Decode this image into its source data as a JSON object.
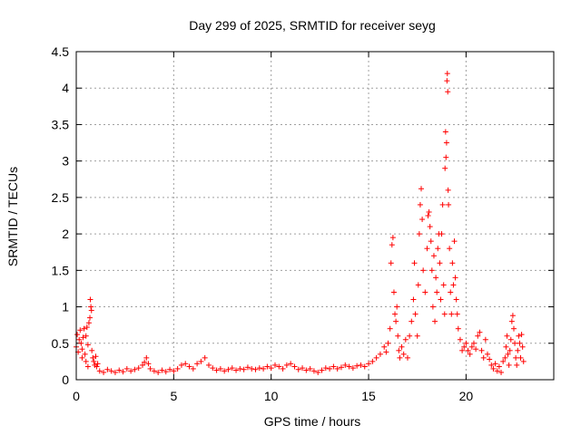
{
  "chart_data": {
    "type": "scatter",
    "title": "Day 299 of 2025, SRMTID for receiver seyg",
    "xlabel": "GPS time / hours",
    "ylabel": "SRMTID / TECUs",
    "xlim": [
      0,
      24.5
    ],
    "ylim": [
      0,
      4.5
    ],
    "grid": true,
    "marker": "+",
    "color": "#ff0000",
    "xticks": [
      0,
      5,
      10,
      15,
      20
    ],
    "xtick_labels": [
      "0",
      "5",
      "10",
      "15",
      "20"
    ],
    "yticks": [
      0,
      0.5,
      1,
      1.5,
      2,
      2.5,
      3,
      3.5,
      4,
      4.5
    ],
    "ytick_labels": [
      "0",
      "0.5",
      "1",
      "1.5",
      "2",
      "2.5",
      "3",
      "3.5",
      "4",
      "4.5"
    ],
    "series": [
      {
        "name": "SRMTID",
        "points": [
          [
            0.0,
            0.45
          ],
          [
            0.05,
            0.62
          ],
          [
            0.1,
            0.38
          ],
          [
            0.15,
            0.55
          ],
          [
            0.2,
            0.68
          ],
          [
            0.25,
            0.5
          ],
          [
            0.3,
            0.42
          ],
          [
            0.35,
            0.58
          ],
          [
            0.4,
            0.7
          ],
          [
            0.45,
            0.35
          ],
          [
            0.5,
            0.6
          ],
          [
            0.55,
            0.72
          ],
          [
            0.6,
            0.48
          ],
          [
            0.65,
            0.78
          ],
          [
            0.7,
            0.85
          ],
          [
            0.72,
            1.1
          ],
          [
            0.75,
            1.0
          ],
          [
            0.78,
            0.95
          ],
          [
            0.8,
            0.4
          ],
          [
            0.85,
            0.3
          ],
          [
            0.9,
            0.25
          ],
          [
            0.95,
            0.2
          ],
          [
            1.0,
            0.32
          ],
          [
            1.05,
            0.18
          ],
          [
            1.1,
            0.22
          ],
          [
            0.5,
            0.25
          ],
          [
            0.6,
            0.18
          ],
          [
            0.3,
            0.3
          ],
          [
            1.2,
            0.12
          ],
          [
            1.4,
            0.1
          ],
          [
            1.6,
            0.14
          ],
          [
            1.8,
            0.12
          ],
          [
            2.0,
            0.1
          ],
          [
            2.2,
            0.13
          ],
          [
            2.4,
            0.11
          ],
          [
            2.6,
            0.15
          ],
          [
            2.8,
            0.12
          ],
          [
            3.0,
            0.14
          ],
          [
            3.2,
            0.16
          ],
          [
            3.4,
            0.2
          ],
          [
            3.5,
            0.24
          ],
          [
            3.6,
            0.3
          ],
          [
            3.7,
            0.22
          ],
          [
            3.8,
            0.15
          ],
          [
            4.0,
            0.12
          ],
          [
            4.2,
            0.1
          ],
          [
            4.4,
            0.13
          ],
          [
            4.6,
            0.11
          ],
          [
            4.8,
            0.14
          ],
          [
            5.0,
            0.12
          ],
          [
            5.2,
            0.15
          ],
          [
            5.4,
            0.2
          ],
          [
            5.6,
            0.22
          ],
          [
            5.8,
            0.18
          ],
          [
            6.0,
            0.15
          ],
          [
            6.2,
            0.22
          ],
          [
            6.4,
            0.25
          ],
          [
            6.6,
            0.3
          ],
          [
            6.8,
            0.2
          ],
          [
            7.0,
            0.16
          ],
          [
            7.2,
            0.13
          ],
          [
            7.4,
            0.15
          ],
          [
            7.6,
            0.12
          ],
          [
            7.8,
            0.14
          ],
          [
            8.0,
            0.16
          ],
          [
            8.2,
            0.13
          ],
          [
            8.4,
            0.15
          ],
          [
            8.6,
            0.14
          ],
          [
            8.8,
            0.17
          ],
          [
            9.0,
            0.15
          ],
          [
            9.2,
            0.14
          ],
          [
            9.4,
            0.16
          ],
          [
            9.6,
            0.15
          ],
          [
            9.8,
            0.18
          ],
          [
            10.0,
            0.16
          ],
          [
            10.2,
            0.2
          ],
          [
            10.4,
            0.18
          ],
          [
            10.6,
            0.15
          ],
          [
            10.8,
            0.2
          ],
          [
            11.0,
            0.22
          ],
          [
            11.2,
            0.18
          ],
          [
            11.4,
            0.14
          ],
          [
            11.6,
            0.16
          ],
          [
            11.8,
            0.13
          ],
          [
            12.0,
            0.15
          ],
          [
            12.2,
            0.12
          ],
          [
            12.4,
            0.1
          ],
          [
            12.6,
            0.13
          ],
          [
            12.8,
            0.16
          ],
          [
            13.0,
            0.15
          ],
          [
            13.2,
            0.18
          ],
          [
            13.4,
            0.15
          ],
          [
            13.6,
            0.17
          ],
          [
            13.8,
            0.2
          ],
          [
            14.0,
            0.18
          ],
          [
            14.2,
            0.16
          ],
          [
            14.4,
            0.19
          ],
          [
            14.6,
            0.2
          ],
          [
            14.8,
            0.18
          ],
          [
            15.0,
            0.22
          ],
          [
            15.2,
            0.25
          ],
          [
            15.4,
            0.3
          ],
          [
            15.6,
            0.35
          ],
          [
            15.8,
            0.45
          ],
          [
            15.9,
            0.38
          ],
          [
            16.0,
            0.5
          ],
          [
            16.1,
            0.7
          ],
          [
            16.15,
            1.6
          ],
          [
            16.2,
            1.85
          ],
          [
            16.25,
            1.95
          ],
          [
            16.3,
            1.2
          ],
          [
            16.35,
            0.9
          ],
          [
            16.4,
            0.8
          ],
          [
            16.45,
            1.0
          ],
          [
            16.5,
            0.6
          ],
          [
            16.55,
            0.4
          ],
          [
            16.6,
            0.3
          ],
          [
            16.7,
            0.45
          ],
          [
            16.8,
            0.35
          ],
          [
            16.9,
            0.55
          ],
          [
            17.0,
            0.3
          ],
          [
            17.1,
            0.6
          ],
          [
            17.2,
            0.8
          ],
          [
            17.3,
            1.1
          ],
          [
            17.35,
            1.6
          ],
          [
            17.4,
            0.9
          ],
          [
            17.5,
            0.6
          ],
          [
            17.55,
            1.3
          ],
          [
            17.6,
            2.0
          ],
          [
            17.65,
            2.4
          ],
          [
            17.7,
            2.62
          ],
          [
            17.75,
            2.2
          ],
          [
            17.8,
            1.5
          ],
          [
            17.9,
            1.2
          ],
          [
            18.0,
            1.8
          ],
          [
            18.05,
            2.25
          ],
          [
            18.1,
            2.3
          ],
          [
            18.15,
            2.1
          ],
          [
            18.2,
            1.9
          ],
          [
            18.25,
            1.5
          ],
          [
            18.3,
            1.0
          ],
          [
            18.35,
            1.7
          ],
          [
            18.4,
            0.8
          ],
          [
            18.45,
            1.4
          ],
          [
            18.5,
            1.2
          ],
          [
            18.55,
            1.8
          ],
          [
            18.6,
            2.0
          ],
          [
            18.65,
            1.6
          ],
          [
            18.7,
            1.1
          ],
          [
            18.75,
            2.0
          ],
          [
            18.8,
            2.4
          ],
          [
            18.85,
            1.3
          ],
          [
            18.9,
            0.9
          ],
          [
            18.92,
            2.9
          ],
          [
            18.95,
            3.4
          ],
          [
            18.97,
            3.05
          ],
          [
            19.0,
            3.25
          ],
          [
            19.02,
            4.1
          ],
          [
            19.04,
            4.2
          ],
          [
            19.06,
            3.95
          ],
          [
            19.08,
            2.6
          ],
          [
            19.1,
            2.4
          ],
          [
            19.15,
            1.8
          ],
          [
            19.2,
            1.2
          ],
          [
            19.25,
            0.9
          ],
          [
            19.3,
            1.6
          ],
          [
            19.35,
            1.3
          ],
          [
            19.4,
            1.9
          ],
          [
            19.45,
            1.4
          ],
          [
            19.5,
            1.1
          ],
          [
            19.55,
            0.9
          ],
          [
            19.6,
            0.7
          ],
          [
            19.7,
            0.55
          ],
          [
            19.8,
            0.4
          ],
          [
            19.9,
            0.45
          ],
          [
            20.0,
            0.5
          ],
          [
            20.1,
            0.4
          ],
          [
            20.2,
            0.35
          ],
          [
            20.3,
            0.45
          ],
          [
            20.4,
            0.5
          ],
          [
            20.5,
            0.42
          ],
          [
            20.6,
            0.6
          ],
          [
            20.7,
            0.65
          ],
          [
            20.8,
            0.4
          ],
          [
            20.9,
            0.3
          ],
          [
            21.0,
            0.55
          ],
          [
            21.1,
            0.35
          ],
          [
            21.2,
            0.28
          ],
          [
            21.3,
            0.2
          ],
          [
            21.4,
            0.15
          ],
          [
            21.5,
            0.22
          ],
          [
            21.6,
            0.12
          ],
          [
            21.7,
            0.18
          ],
          [
            21.8,
            0.1
          ],
          [
            21.9,
            0.25
          ],
          [
            22.0,
            0.3
          ],
          [
            22.05,
            0.45
          ],
          [
            22.1,
            0.6
          ],
          [
            22.15,
            0.35
          ],
          [
            22.2,
            0.2
          ],
          [
            22.25,
            0.4
          ],
          [
            22.3,
            0.55
          ],
          [
            22.35,
            0.8
          ],
          [
            22.4,
            0.88
          ],
          [
            22.45,
            0.7
          ],
          [
            22.5,
            0.5
          ],
          [
            22.55,
            0.3
          ],
          [
            22.6,
            0.2
          ],
          [
            22.65,
            0.4
          ],
          [
            22.7,
            0.6
          ],
          [
            22.75,
            0.5
          ],
          [
            22.8,
            0.3
          ],
          [
            22.85,
            0.62
          ],
          [
            22.9,
            0.45
          ],
          [
            22.95,
            0.25
          ]
        ]
      }
    ]
  }
}
